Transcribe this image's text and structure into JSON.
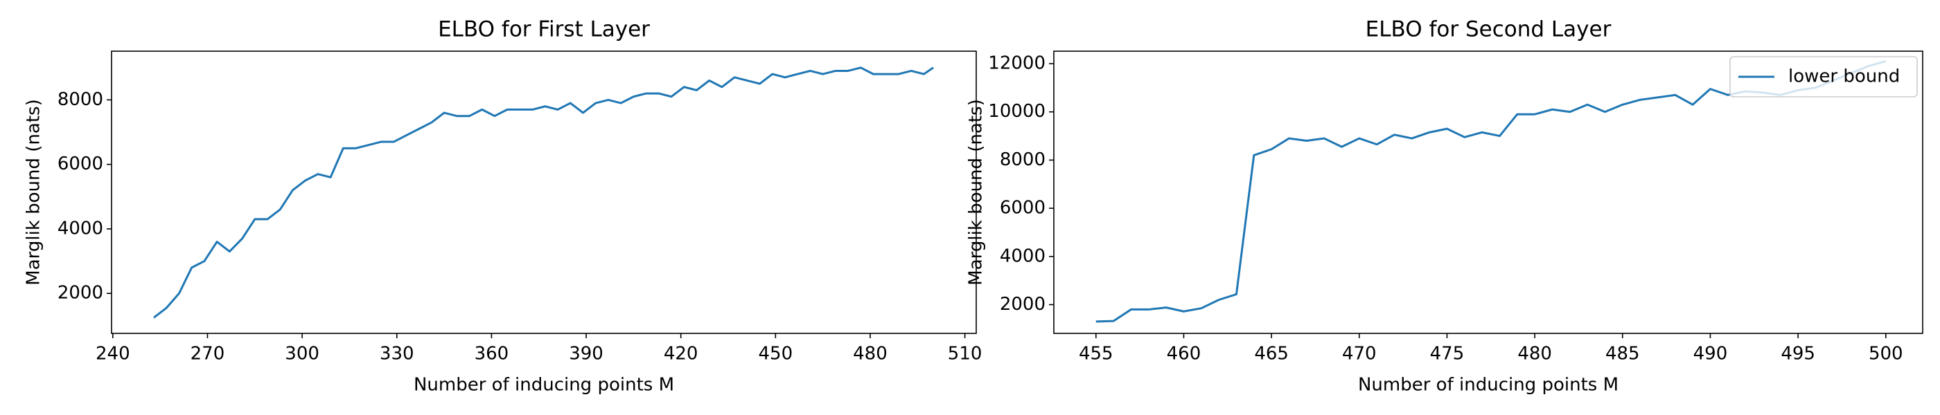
{
  "chart_data": [
    {
      "type": "line",
      "title": "ELBO for First Layer",
      "x_label": "Number of inducing points M",
      "y_label": "Marglik bound (nats)",
      "x": [
        253,
        257,
        261,
        265,
        269,
        273,
        277,
        281,
        285,
        289,
        293,
        297,
        301,
        305,
        309,
        313,
        317,
        321,
        325,
        329,
        333,
        337,
        341,
        345,
        349,
        353,
        357,
        361,
        365,
        369,
        373,
        377,
        381,
        385,
        389,
        393,
        397,
        401,
        405,
        409,
        413,
        417,
        421,
        425,
        429,
        433,
        437,
        441,
        445,
        449,
        453,
        457,
        461,
        465,
        469,
        473,
        477,
        481,
        485,
        489,
        493,
        497,
        500
      ],
      "series": [
        {
          "color": "#1f77b4",
          "values": [
            1250,
            1550,
            2000,
            2800,
            3000,
            3600,
            3300,
            3700,
            4300,
            4300,
            4600,
            5200,
            5500,
            5700,
            5600,
            6500,
            6500,
            6600,
            6700,
            6700,
            6900,
            7100,
            7300,
            7600,
            7500,
            7500,
            7700,
            7500,
            7700,
            7700,
            7700,
            7800,
            7700,
            7900,
            7600,
            7900,
            8000,
            7900,
            8100,
            8200,
            8200,
            8100,
            8400,
            8300,
            8600,
            8400,
            8700,
            8600,
            8500,
            8800,
            8700,
            8800,
            8900,
            8800,
            8900,
            8900,
            9000,
            8800,
            8800,
            8800,
            8900,
            8800,
            9000
          ]
        }
      ],
      "xlim": [
        239.6,
        513.6
      ],
      "ylim": [
        760,
        9510
      ],
      "xticks": [
        240,
        270,
        300,
        330,
        360,
        390,
        420,
        450,
        480,
        510
      ],
      "yticks": [
        2000,
        4000,
        6000,
        8000
      ]
    },
    {
      "type": "line",
      "title": "ELBO for Second Layer",
      "x_label": "Number of inducing points M",
      "y_label": "Marglik bound (nats)",
      "x": [
        455,
        456,
        457,
        458,
        459,
        460,
        461,
        462,
        463,
        464,
        465,
        466,
        467,
        468,
        469,
        470,
        471,
        472,
        473,
        474,
        475,
        476,
        477,
        478,
        479,
        480,
        481,
        482,
        483,
        484,
        485,
        486,
        487,
        488,
        489,
        490,
        491,
        492,
        493,
        494,
        495,
        496,
        497,
        498,
        499,
        500
      ],
      "series": [
        {
          "name": "lower bound",
          "color": "#1f77b4",
          "values": [
            1300,
            1320,
            1800,
            1800,
            1880,
            1720,
            1850,
            2200,
            2430,
            8200,
            8450,
            8900,
            8800,
            8900,
            8550,
            8900,
            8650,
            9050,
            8900,
            9150,
            9300,
            8950,
            9150,
            9000,
            9900,
            9900,
            10100,
            10000,
            10300,
            10000,
            10300,
            10500,
            10600,
            10700,
            10300,
            10950,
            10700,
            10850,
            10800,
            10700,
            10900,
            11000,
            11300,
            11600,
            11900,
            12100
          ]
        }
      ],
      "xlim": [
        452.6,
        502.1
      ],
      "ylim": [
        808,
        12518
      ],
      "xticks": [
        455,
        460,
        465,
        470,
        475,
        480,
        485,
        490,
        495,
        500
      ],
      "yticks": [
        2000,
        4000,
        6000,
        8000,
        10000,
        12000
      ],
      "legend": "upper right"
    }
  ]
}
